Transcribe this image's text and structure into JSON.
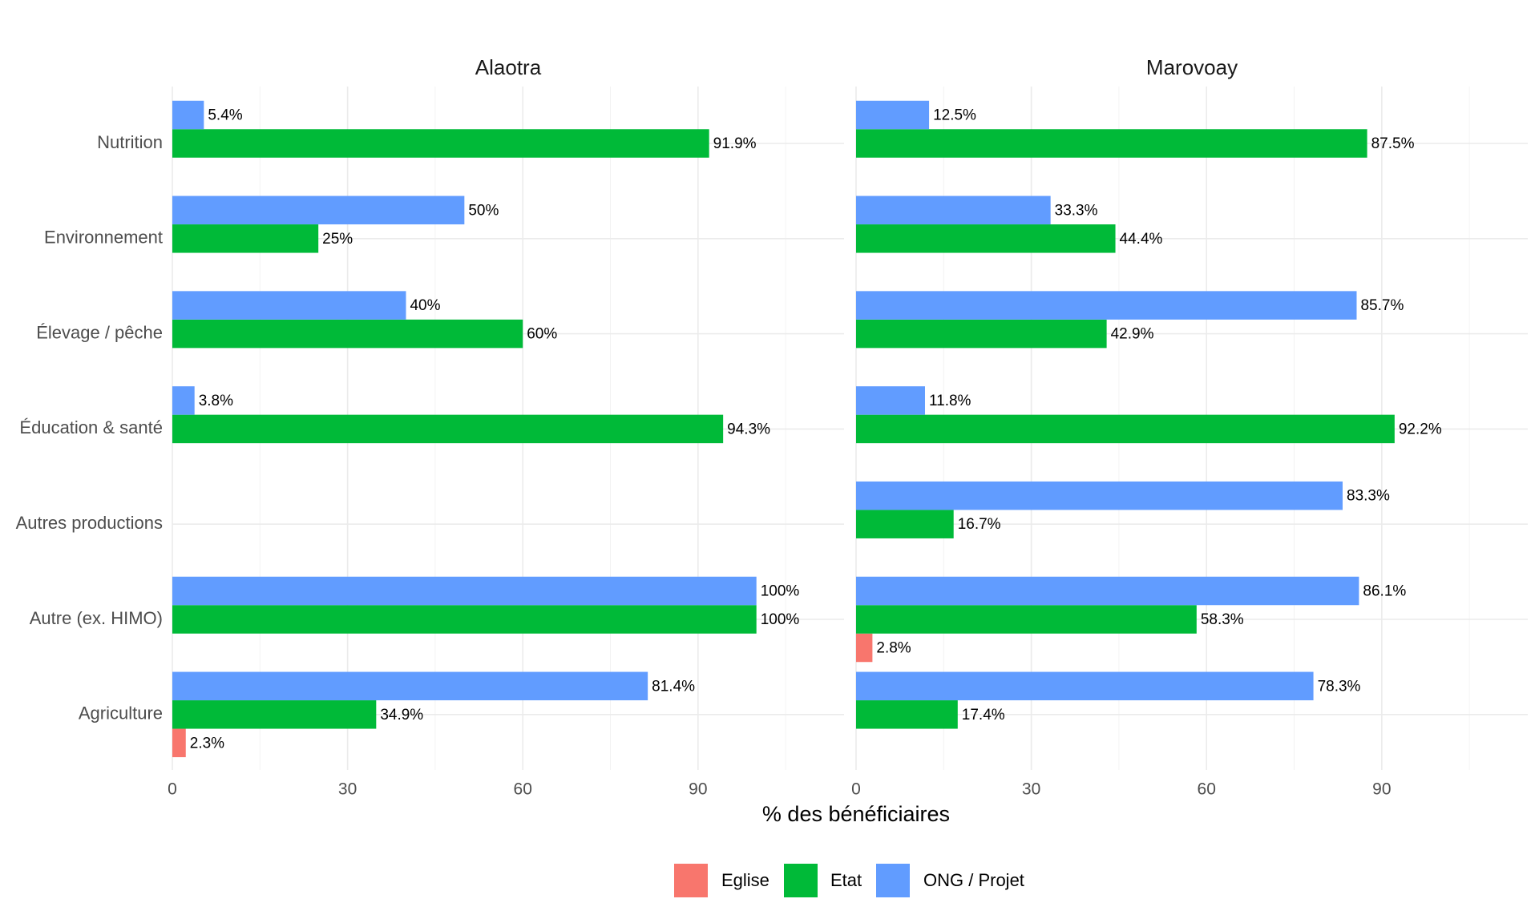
{
  "chart_data": {
    "type": "bar",
    "orientation": "horizontal",
    "xlabel": "% des bénéficiaires",
    "ylabel": "",
    "xlim": [
      0,
      115
    ],
    "xticks": [
      "0",
      "30",
      "60",
      "90"
    ],
    "xtick_values": [
      0,
      30,
      60,
      90
    ],
    "categories": [
      "Nutrition",
      "Environnement",
      "Élevage / pêche",
      "Éducation & santé",
      "Autres productions",
      "Autre (ex. HIMO)",
      "Agriculture"
    ],
    "legend": {
      "position": "bottom",
      "entries": [
        {
          "name": "Eglise",
          "color": "#F8766D"
        },
        {
          "name": "Etat",
          "color": "#00BA38"
        },
        {
          "name": "ONG / Projet",
          "color": "#619CFF"
        }
      ]
    },
    "panels": [
      {
        "title": "Alaotra",
        "series": [
          {
            "name": "Eglise",
            "values": [
              null,
              null,
              null,
              null,
              null,
              null,
              2.3
            ],
            "labels": [
              null,
              null,
              null,
              null,
              null,
              null,
              "2.3%"
            ]
          },
          {
            "name": "Etat",
            "values": [
              91.9,
              25,
              60,
              94.3,
              null,
              100,
              34.9
            ],
            "labels": [
              "91.9%",
              "25%",
              "60%",
              "94.3%",
              null,
              "100%",
              "34.9%"
            ]
          },
          {
            "name": "ONG / Projet",
            "values": [
              5.4,
              50,
              40,
              3.8,
              null,
              100,
              81.4
            ],
            "labels": [
              "5.4%",
              "50%",
              "40%",
              "3.8%",
              null,
              "100%",
              "81.4%"
            ]
          }
        ]
      },
      {
        "title": "Marovoay",
        "series": [
          {
            "name": "Eglise",
            "values": [
              null,
              null,
              null,
              null,
              null,
              2.8,
              null
            ],
            "labels": [
              null,
              null,
              null,
              null,
              null,
              "2.8%",
              null
            ]
          },
          {
            "name": "Etat",
            "values": [
              87.5,
              44.4,
              42.9,
              92.2,
              16.7,
              58.3,
              17.4
            ],
            "labels": [
              "87.5%",
              "44.4%",
              "42.9%",
              "92.2%",
              "16.7%",
              "58.3%",
              "17.4%"
            ]
          },
          {
            "name": "ONG / Projet",
            "values": [
              12.5,
              33.3,
              85.7,
              11.8,
              83.3,
              86.1,
              78.3
            ],
            "labels": [
              "12.5%",
              "33.3%",
              "85.7%",
              "11.8%",
              "83.3%",
              "86.1%",
              "78.3%"
            ]
          }
        ]
      }
    ]
  }
}
